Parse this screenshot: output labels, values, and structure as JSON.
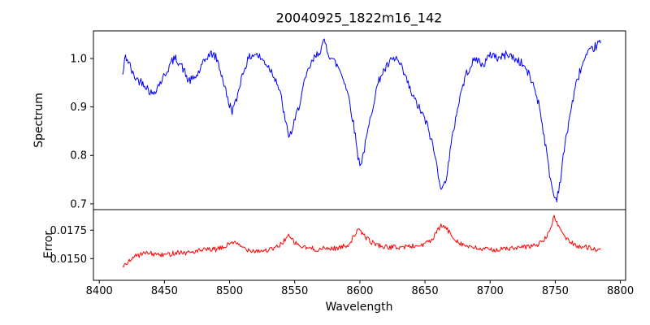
{
  "chart_data": {
    "type": "line",
    "title": "20040925_1822m16_142",
    "xlabel": "Wavelength",
    "xlim": [
      8395.5,
      8804
    ],
    "xticks": [
      8400,
      8450,
      8500,
      8550,
      8600,
      8650,
      8700,
      8750,
      8800
    ],
    "xtick_labels": [
      "8400",
      "8450",
      "8500",
      "8550",
      "8600",
      "8650",
      "8700",
      "8750",
      "8800"
    ],
    "x_range": [
      8418,
      8785
    ],
    "sample_step": 0.7,
    "noise_seed": 42,
    "legend": "none",
    "grid": false,
    "panels": [
      {
        "name": "spectrum",
        "ylabel": "Spectrum",
        "color": "#0000ff",
        "ylim": [
          0.688,
          1.057
        ],
        "yticks": [
          0.7,
          0.8,
          0.9,
          1.0
        ],
        "ytick_labels": [
          "0.7",
          "0.8",
          "0.9",
          "1.0"
        ],
        "noise": 0.009,
        "control_points": [
          [
            8418,
            0.965
          ],
          [
            8420,
            1.005
          ],
          [
            8423,
            0.99
          ],
          [
            8426,
            0.965
          ],
          [
            8430,
            0.955
          ],
          [
            8434,
            0.95
          ],
          [
            8438,
            0.935
          ],
          [
            8441,
            0.925
          ],
          [
            8444,
            0.94
          ],
          [
            8448,
            0.955
          ],
          [
            8452,
            0.975
          ],
          [
            8456,
            0.995
          ],
          [
            8459,
            1.0
          ],
          [
            8462,
            0.99
          ],
          [
            8465,
            0.975
          ],
          [
            8468,
            0.955
          ],
          [
            8471,
            0.955
          ],
          [
            8475,
            0.965
          ],
          [
            8479,
            0.985
          ],
          [
            8483,
            1.005
          ],
          [
            8487,
            1.01
          ],
          [
            8490,
            1.0
          ],
          [
            8493,
            0.975
          ],
          [
            8496,
            0.945
          ],
          [
            8499,
            0.91
          ],
          [
            8502,
            0.893
          ],
          [
            8505,
            0.91
          ],
          [
            8508,
            0.95
          ],
          [
            8512,
            0.985
          ],
          [
            8516,
            1.005
          ],
          [
            8520,
            1.01
          ],
          [
            8524,
            1.0
          ],
          [
            8528,
            0.99
          ],
          [
            8532,
            0.975
          ],
          [
            8536,
            0.955
          ],
          [
            8540,
            0.915
          ],
          [
            8543,
            0.865
          ],
          [
            8546,
            0.838
          ],
          [
            8549,
            0.86
          ],
          [
            8553,
            0.9
          ],
          [
            8557,
            0.945
          ],
          [
            8561,
            0.98
          ],
          [
            8565,
            1.0
          ],
          [
            8569,
            1.015
          ],
          [
            8573,
            1.035
          ],
          [
            8576,
            1.01
          ],
          [
            8580,
            0.995
          ],
          [
            8584,
            0.98
          ],
          [
            8588,
            0.955
          ],
          [
            8592,
            0.915
          ],
          [
            8596,
            0.85
          ],
          [
            8599,
            0.79
          ],
          [
            8601,
            0.783
          ],
          [
            8604,
            0.82
          ],
          [
            8608,
            0.875
          ],
          [
            8612,
            0.93
          ],
          [
            8616,
            0.965
          ],
          [
            8620,
            0.98
          ],
          [
            8624,
            0.995
          ],
          [
            8628,
            1.0
          ],
          [
            8632,
            0.98
          ],
          [
            8636,
            0.955
          ],
          [
            8640,
            0.925
          ],
          [
            8644,
            0.905
          ],
          [
            8648,
            0.885
          ],
          [
            8652,
            0.86
          ],
          [
            8656,
            0.82
          ],
          [
            8659,
            0.78
          ],
          [
            8662,
            0.738
          ],
          [
            8664,
            0.73
          ],
          [
            8667,
            0.765
          ],
          [
            8670,
            0.82
          ],
          [
            8674,
            0.885
          ],
          [
            8678,
            0.935
          ],
          [
            8682,
            0.97
          ],
          [
            8686,
            0.99
          ],
          [
            8690,
            1.0
          ],
          [
            8694,
            0.985
          ],
          [
            8698,
            1.0
          ],
          [
            8702,
            1.01
          ],
          [
            8706,
            1.0
          ],
          [
            8710,
            1.005
          ],
          [
            8714,
            1.01
          ],
          [
            8718,
            1.0
          ],
          [
            8722,
            0.995
          ],
          [
            8726,
            0.985
          ],
          [
            8730,
            0.965
          ],
          [
            8734,
            0.94
          ],
          [
            8738,
            0.9
          ],
          [
            8742,
            0.83
          ],
          [
            8746,
            0.755
          ],
          [
            8749,
            0.715
          ],
          [
            8751,
            0.71
          ],
          [
            8754,
            0.75
          ],
          [
            8757,
            0.815
          ],
          [
            8761,
            0.88
          ],
          [
            8765,
            0.935
          ],
          [
            8769,
            0.975
          ],
          [
            8773,
            1.0
          ],
          [
            8777,
            1.015
          ],
          [
            8781,
            1.025
          ],
          [
            8785,
            1.035
          ]
        ]
      },
      {
        "name": "error",
        "ylabel": "Error",
        "color": "#ff0000",
        "ylim": [
          0.0131,
          0.0193
        ],
        "yticks": [
          0.015,
          0.0175
        ],
        "ytick_labels": [
          "0.0150",
          "0.0175"
        ],
        "noise": 0.00022,
        "control_points": [
          [
            8418,
            0.0142
          ],
          [
            8424,
            0.015
          ],
          [
            8430,
            0.0153
          ],
          [
            8436,
            0.0155
          ],
          [
            8442,
            0.0154
          ],
          [
            8448,
            0.0153
          ],
          [
            8454,
            0.0154
          ],
          [
            8460,
            0.0156
          ],
          [
            8466,
            0.0155
          ],
          [
            8472,
            0.0156
          ],
          [
            8478,
            0.0157
          ],
          [
            8484,
            0.0158
          ],
          [
            8490,
            0.0158
          ],
          [
            8496,
            0.016
          ],
          [
            8502,
            0.0165
          ],
          [
            8508,
            0.0161
          ],
          [
            8514,
            0.0158
          ],
          [
            8520,
            0.0157
          ],
          [
            8526,
            0.0157
          ],
          [
            8532,
            0.0158
          ],
          [
            8538,
            0.0161
          ],
          [
            8545,
            0.017
          ],
          [
            8550,
            0.0164
          ],
          [
            8556,
            0.016
          ],
          [
            8562,
            0.0159
          ],
          [
            8568,
            0.0158
          ],
          [
            8574,
            0.0159
          ],
          [
            8580,
            0.0159
          ],
          [
            8586,
            0.016
          ],
          [
            8592,
            0.0163
          ],
          [
            8598,
            0.0175
          ],
          [
            8602,
            0.0172
          ],
          [
            8608,
            0.0165
          ],
          [
            8614,
            0.0162
          ],
          [
            8620,
            0.016
          ],
          [
            8626,
            0.016
          ],
          [
            8632,
            0.016
          ],
          [
            8638,
            0.0161
          ],
          [
            8644,
            0.0161
          ],
          [
            8650,
            0.0163
          ],
          [
            8656,
            0.0167
          ],
          [
            8662,
            0.0179
          ],
          [
            8666,
            0.0177
          ],
          [
            8672,
            0.0168
          ],
          [
            8678,
            0.0163
          ],
          [
            8684,
            0.016
          ],
          [
            8690,
            0.0159
          ],
          [
            8696,
            0.0158
          ],
          [
            8702,
            0.0158
          ],
          [
            8708,
            0.0158
          ],
          [
            8714,
            0.0159
          ],
          [
            8720,
            0.0159
          ],
          [
            8726,
            0.016
          ],
          [
            8732,
            0.0161
          ],
          [
            8738,
            0.0163
          ],
          [
            8744,
            0.017
          ],
          [
            8749,
            0.0186
          ],
          [
            8753,
            0.0178
          ],
          [
            8758,
            0.0168
          ],
          [
            8764,
            0.0163
          ],
          [
            8770,
            0.016
          ],
          [
            8776,
            0.016
          ],
          [
            8781,
            0.0158
          ],
          [
            8785,
            0.0157
          ]
        ]
      }
    ]
  }
}
